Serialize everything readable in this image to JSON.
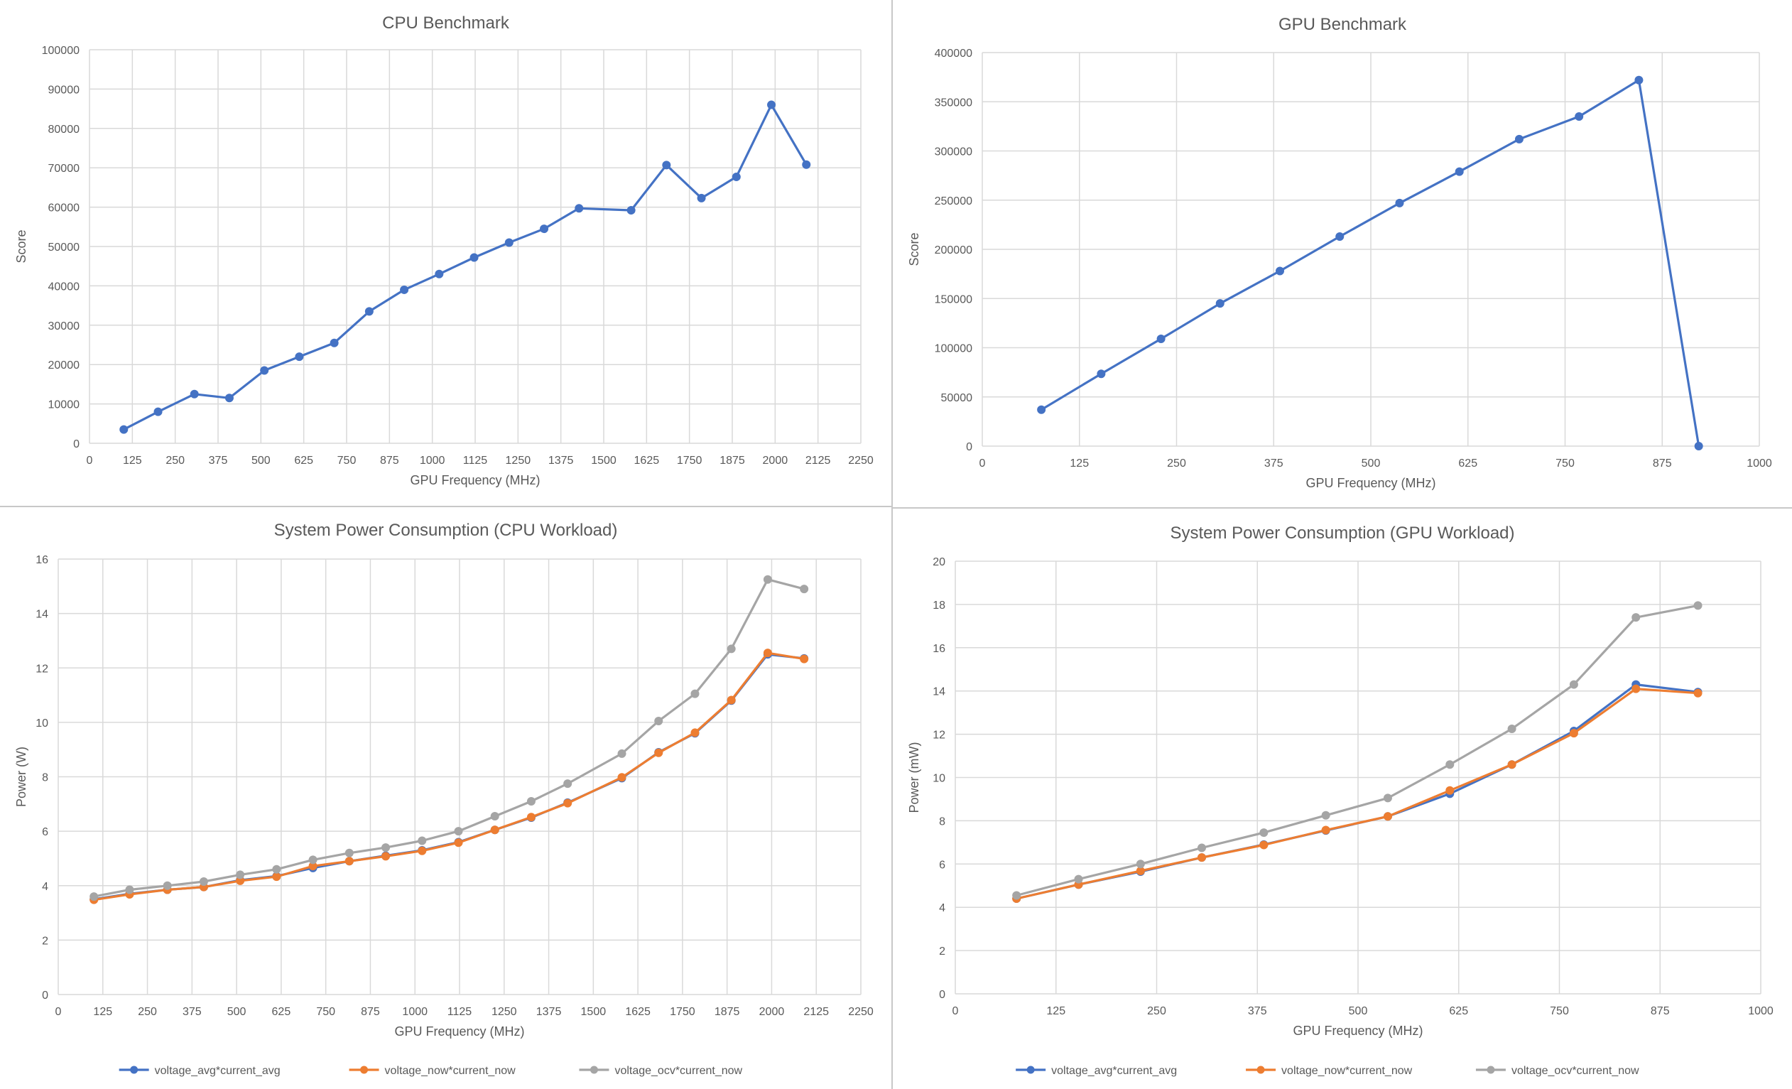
{
  "chart_data": [
    {
      "id": "cpu-bench",
      "type": "line",
      "title": "CPU Benchmark",
      "xlabel": "GPU Frequency (MHz)",
      "ylabel": "Score",
      "xlim": [
        0,
        2250
      ],
      "ylim": [
        0,
        100000
      ],
      "x_ticks": [
        0,
        125,
        250,
        375,
        500,
        625,
        750,
        875,
        1000,
        1125,
        1250,
        1375,
        1500,
        1625,
        1750,
        1875,
        2000,
        2125,
        2250
      ],
      "y_ticks": [
        0,
        10000,
        20000,
        30000,
        40000,
        50000,
        60000,
        70000,
        80000,
        90000,
        100000
      ],
      "grid": "both",
      "legend": "none",
      "series": [
        {
          "color": "#4472c4",
          "points": [
            [
              100,
              3500
            ],
            [
              200,
              8000
            ],
            [
              306,
              12500
            ],
            [
              408,
              11500
            ],
            [
              510,
              18500
            ],
            [
              612,
              22000
            ],
            [
              714,
              25500
            ],
            [
              816,
              33500
            ],
            [
              918,
              39000
            ],
            [
              1020,
              43000
            ],
            [
              1122,
              47200
            ],
            [
              1224,
              51000
            ],
            [
              1326,
              54500
            ],
            [
              1428,
              59700
            ],
            [
              1580,
              59200
            ],
            [
              1683,
              70700
            ],
            [
              1785,
              62300
            ],
            [
              1887,
              67700
            ],
            [
              1989,
              86000
            ],
            [
              2091,
              70800
            ]
          ]
        }
      ]
    },
    {
      "id": "gpu-bench",
      "type": "line",
      "title": "GPU Benchmark",
      "xlabel": "GPU Frequency (MHz)",
      "ylabel": "Score",
      "xlim": [
        0,
        1000
      ],
      "ylim": [
        0,
        400000
      ],
      "x_ticks": [
        0,
        125,
        250,
        375,
        500,
        625,
        750,
        875,
        1000
      ],
      "y_ticks": [
        0,
        50000,
        100000,
        150000,
        200000,
        250000,
        300000,
        350000,
        400000
      ],
      "grid": "both",
      "legend": "none",
      "series": [
        {
          "color": "#4472c4",
          "points": [
            [
              76,
              37000
            ],
            [
              153,
              73500
            ],
            [
              230,
              109000
            ],
            [
              306,
              145000
            ],
            [
              383,
              178000
            ],
            [
              460,
              213000
            ],
            [
              537,
              247000
            ],
            [
              614,
              279000
            ],
            [
              691,
              312000
            ],
            [
              768,
              335000
            ],
            [
              845,
              372000
            ],
            [
              922,
              0
            ]
          ]
        }
      ]
    },
    {
      "id": "cpu-power",
      "type": "line",
      "title": "System Power Consumption (CPU Workload)",
      "xlabel": "GPU Frequency (MHz)",
      "ylabel": "Power (W)",
      "xlim": [
        0,
        2250
      ],
      "ylim": [
        0,
        16
      ],
      "x_ticks": [
        0,
        125,
        250,
        375,
        500,
        625,
        750,
        875,
        1000,
        1125,
        1250,
        1375,
        1500,
        1625,
        1750,
        1875,
        2000,
        2125,
        2250
      ],
      "y_ticks": [
        0,
        2,
        4,
        6,
        8,
        10,
        12,
        14,
        16
      ],
      "grid": "both",
      "legend": "bottom",
      "series": [
        {
          "name": "voltage_avg*current_avg",
          "color": "#4472c4",
          "points": [
            [
              100,
              3.5
            ],
            [
              200,
              3.7
            ],
            [
              306,
              3.85
            ],
            [
              408,
              3.95
            ],
            [
              510,
              4.2
            ],
            [
              612,
              4.35
            ],
            [
              714,
              4.65
            ],
            [
              816,
              4.9
            ],
            [
              918,
              5.1
            ],
            [
              1020,
              5.3
            ],
            [
              1122,
              5.6
            ],
            [
              1224,
              6.05
            ],
            [
              1326,
              6.5
            ],
            [
              1428,
              7.05
            ],
            [
              1580,
              7.95
            ],
            [
              1683,
              8.9
            ],
            [
              1785,
              9.6
            ],
            [
              1887,
              10.8
            ],
            [
              1989,
              12.5
            ],
            [
              2091,
              12.35
            ]
          ]
        },
        {
          "name": "voltage_now*current_now",
          "color": "#ed7d31",
          "points": [
            [
              100,
              3.48
            ],
            [
              200,
              3.68
            ],
            [
              306,
              3.85
            ],
            [
              408,
              3.95
            ],
            [
              510,
              4.18
            ],
            [
              612,
              4.33
            ],
            [
              714,
              4.72
            ],
            [
              816,
              4.9
            ],
            [
              918,
              5.08
            ],
            [
              1020,
              5.28
            ],
            [
              1122,
              5.58
            ],
            [
              1224,
              6.05
            ],
            [
              1326,
              6.52
            ],
            [
              1428,
              7.03
            ],
            [
              1580,
              7.98
            ],
            [
              1683,
              8.88
            ],
            [
              1785,
              9.62
            ],
            [
              1887,
              10.82
            ],
            [
              1989,
              12.55
            ],
            [
              2091,
              12.33
            ]
          ]
        },
        {
          "name": "voltage_ocv*current_now",
          "color": "#a5a5a5",
          "points": [
            [
              100,
              3.6
            ],
            [
              200,
              3.85
            ],
            [
              306,
              4.0
            ],
            [
              408,
              4.15
            ],
            [
              510,
              4.4
            ],
            [
              612,
              4.6
            ],
            [
              714,
              4.95
            ],
            [
              816,
              5.2
            ],
            [
              918,
              5.4
            ],
            [
              1020,
              5.65
            ],
            [
              1122,
              6.0
            ],
            [
              1224,
              6.55
            ],
            [
              1326,
              7.1
            ],
            [
              1428,
              7.75
            ],
            [
              1580,
              8.85
            ],
            [
              1683,
              10.05
            ],
            [
              1785,
              11.05
            ],
            [
              1887,
              12.7
            ],
            [
              1989,
              15.25
            ],
            [
              2091,
              14.9
            ]
          ]
        }
      ]
    },
    {
      "id": "gpu-power",
      "type": "line",
      "title": "System Power Consumption (GPU Workload)",
      "xlabel": "GPU Frequency (MHz)",
      "ylabel": "Power (mW)",
      "xlim": [
        0,
        1000
      ],
      "ylim": [
        0,
        20
      ],
      "x_ticks": [
        0,
        125,
        250,
        375,
        500,
        625,
        750,
        875,
        1000
      ],
      "y_ticks": [
        0,
        2,
        4,
        6,
        8,
        10,
        12,
        14,
        16,
        18,
        20
      ],
      "grid": "both",
      "legend": "bottom",
      "series": [
        {
          "name": "voltage_avg*current_avg",
          "color": "#4472c4",
          "points": [
            [
              76,
              4.4
            ],
            [
              153,
              5.05
            ],
            [
              230,
              5.65
            ],
            [
              306,
              6.3
            ],
            [
              383,
              6.9
            ],
            [
              460,
              7.55
            ],
            [
              537,
              8.2
            ],
            [
              614,
              9.25
            ],
            [
              691,
              10.6
            ],
            [
              768,
              12.15
            ],
            [
              845,
              14.3
            ],
            [
              922,
              13.95
            ]
          ]
        },
        {
          "name": "voltage_now*current_now",
          "color": "#ed7d31",
          "points": [
            [
              76,
              4.4
            ],
            [
              153,
              5.05
            ],
            [
              230,
              5.68
            ],
            [
              306,
              6.3
            ],
            [
              383,
              6.88
            ],
            [
              460,
              7.57
            ],
            [
              537,
              8.2
            ],
            [
              614,
              9.4
            ],
            [
              691,
              10.6
            ],
            [
              768,
              12.05
            ],
            [
              845,
              14.1
            ],
            [
              922,
              13.9
            ]
          ]
        },
        {
          "name": "voltage_ocv*current_now",
          "color": "#a5a5a5",
          "points": [
            [
              76,
              4.55
            ],
            [
              153,
              5.3
            ],
            [
              230,
              6.0
            ],
            [
              306,
              6.75
            ],
            [
              383,
              7.45
            ],
            [
              460,
              8.25
            ],
            [
              537,
              9.05
            ],
            [
              614,
              10.6
            ],
            [
              691,
              12.25
            ],
            [
              768,
              14.3
            ],
            [
              845,
              17.4
            ],
            [
              922,
              17.95
            ]
          ]
        }
      ]
    }
  ]
}
